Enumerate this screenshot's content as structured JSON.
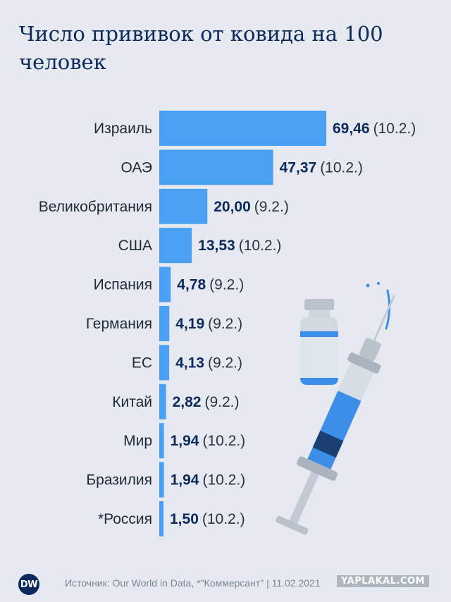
{
  "title": "Число прививок от ковида на 100 человек",
  "chart_data": {
    "type": "bar",
    "orientation": "horizontal",
    "title": "Число прививок от ковида на 100 человек",
    "categories": [
      "Израиль",
      "ОАЭ",
      "Великобритания",
      "США",
      "Испания",
      "Германия",
      "ЕС",
      "Китай",
      "Мир",
      "Бразилия",
      "*Россия"
    ],
    "values": [
      69.46,
      47.37,
      20.0,
      13.53,
      4.78,
      4.19,
      4.13,
      2.82,
      1.94,
      1.94,
      1.5
    ],
    "value_labels": [
      "69,46",
      "47,37",
      "20,00",
      "13,53",
      "4,78",
      "4,19",
      "4,13",
      "2,82",
      "1,94",
      "1,94",
      "1,50"
    ],
    "dates": [
      "(10.2.)",
      "(10.2.)",
      "(9.2.)",
      "(10.2.)",
      "(9.2.)",
      "(9.2.)",
      "(9.2.)",
      "(9.2.)",
      "(10.2.)",
      "(10.2.)",
      "(10.2.)"
    ],
    "xlim": [
      0,
      70
    ],
    "grid": false,
    "bar_color": "#4aa1f3"
  },
  "footer": {
    "logo": "DW",
    "source": "Источник: Our World in Data, *\"Коммерсант\" | 11.02.2021",
    "watermark": "YAPLAKAL.COM"
  },
  "colors": {
    "background": "#e6eaf0",
    "title": "#0b2a5b",
    "bar": "#4aa1f3",
    "value": "#0b2a5b",
    "illustration_blue": "#3d8ee8",
    "illustration_navy": "#1c3f73"
  }
}
